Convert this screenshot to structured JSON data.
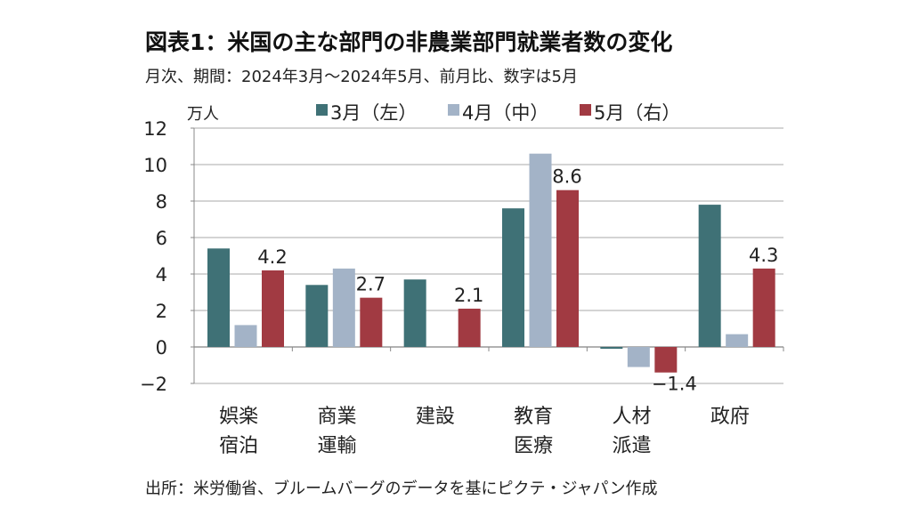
{
  "chart_data": {
    "type": "bar",
    "title": "図表1：米国の主な部門の非農業部門就業者数の変化",
    "subtitle": "月次、期間：2024年3月～2024年5月、前月比、数字は5月",
    "ylabel": "万人",
    "source": "出所：米労働省、ブルームバーグのデータを基にピクテ・ジャパン作成",
    "ylim": [
      -2,
      12
    ],
    "yticks": [
      -2,
      0,
      2,
      4,
      6,
      8,
      10,
      12
    ],
    "categories": [
      [
        "娯楽",
        "宿泊"
      ],
      [
        "商業",
        "運輸"
      ],
      [
        "建設"
      ],
      [
        "教育",
        "医療"
      ],
      [
        "人材",
        "派遣"
      ],
      [
        "政府"
      ]
    ],
    "series": [
      {
        "name": "3月(左)",
        "color": "#3f7176",
        "values": [
          5.4,
          3.4,
          3.7,
          7.6,
          -0.1,
          7.8
        ]
      },
      {
        "name": "4月(中)",
        "color": "#a3b3c7",
        "values": [
          1.2,
          4.3,
          0,
          10.6,
          -1.1,
          0.7
        ]
      },
      {
        "name": "5月(右)",
        "color": "#a13a42",
        "values": [
          4.2,
          2.7,
          2.1,
          8.6,
          -1.4,
          4.3
        ]
      }
    ],
    "data_labels": [
      "4.2",
      "2.7",
      "2.1",
      "8.6",
      "-1.4",
      "4.3"
    ],
    "grid": true,
    "legend": "top"
  }
}
